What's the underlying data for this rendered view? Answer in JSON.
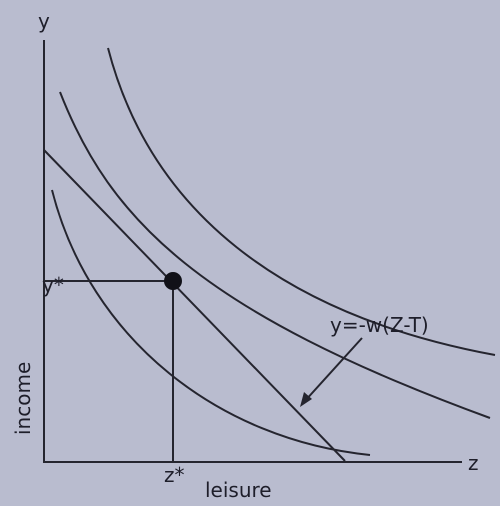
{
  "axes": {
    "y_label": "y",
    "x_label": "z",
    "y_title": "income",
    "x_title": "leisure"
  },
  "annotations": {
    "y_star": "y*",
    "z_star": "z*",
    "budget_line": "y=-w(Z-T)"
  }
}
